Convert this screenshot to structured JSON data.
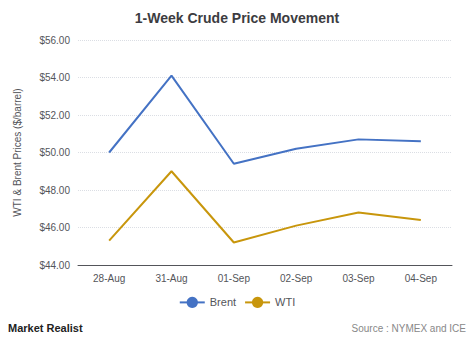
{
  "chart_data": {
    "type": "line",
    "title": "1-Week Crude Price Movement",
    "ylabel": "WTI & Brent Prices ($/barrel)",
    "categories": [
      "28-Aug",
      "31-Aug",
      "01-Sep",
      "02-Sep",
      "03-Sep",
      "04-Sep"
    ],
    "series": [
      {
        "name": "Brent",
        "color": "#4472C4",
        "values": [
          50.0,
          54.1,
          49.4,
          50.2,
          50.7,
          50.6
        ]
      },
      {
        "name": "WTI",
        "color": "#C8960C",
        "values": [
          45.3,
          49.0,
          45.2,
          46.1,
          46.8,
          46.4
        ]
      }
    ],
    "ylim": [
      44.0,
      56.0
    ],
    "yticks": [
      {
        "value": 44.0,
        "label": "$44.00"
      },
      {
        "value": 46.0,
        "label": "$46.00"
      },
      {
        "value": 48.0,
        "label": "$48.00"
      },
      {
        "value": 50.0,
        "label": "$50.00"
      },
      {
        "value": 52.0,
        "label": "$52.00"
      },
      {
        "value": 54.0,
        "label": "$54.00"
      },
      {
        "value": 56.0,
        "label": "$56.00"
      }
    ],
    "grid": true,
    "legend": "bottom",
    "annotations": [
      "Market Realist",
      "Source : NYMEX and ICE"
    ]
  }
}
